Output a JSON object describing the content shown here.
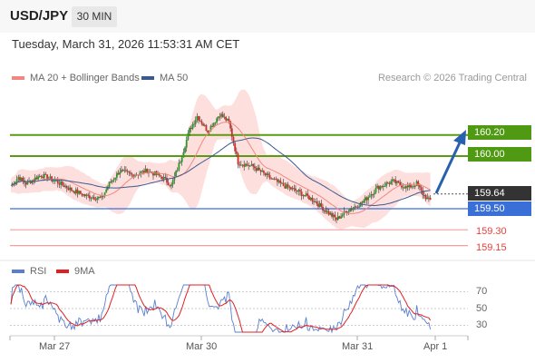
{
  "header": {
    "symbol": "USD/JPY",
    "timeframe": "30 MIN",
    "datetime": "Tuesday, March 31, 2026 11:53:31 AM CET"
  },
  "legend": {
    "ma20": "MA 20 + Bollinger Bands",
    "ma50": "MA 50",
    "copyright": "Research © 2026 Trading Central"
  },
  "colors": {
    "up": "#2a9a2a",
    "down": "#d0302a",
    "ma20": "#f2877f",
    "ma50": "#3a5a8f",
    "band": "#fde0de",
    "resistance": "#5a9a14",
    "support": "#3a6fd8",
    "support_low": "#f0a0a0",
    "arrow": "#2860b0",
    "rsi": "#5a7fd0",
    "rsi_ma": "#e02020"
  },
  "levels": {
    "r2": "160.20",
    "r1": "160.00",
    "current": "159.64",
    "pivot": "159.50",
    "s1": "159.30",
    "s2": "159.15"
  },
  "rsi_panel": {
    "rsi_label": "RSI",
    "ma_label": "9MA",
    "ticks": [
      "70",
      "50",
      "30"
    ]
  },
  "x_axis": {
    "labels": [
      "Mar 27",
      "Mar 30",
      "Mar 31",
      "Apr 1"
    ]
  },
  "chart_data": {
    "type": "candlestick",
    "ylim": [
      159.05,
      160.45
    ],
    "horizontal_levels": [
      160.2,
      160.0,
      159.64,
      159.5,
      159.3,
      159.15
    ],
    "rsi_ylim": [
      20,
      80
    ],
    "rsi_ticks": [
      70,
      50,
      30
    ]
  }
}
